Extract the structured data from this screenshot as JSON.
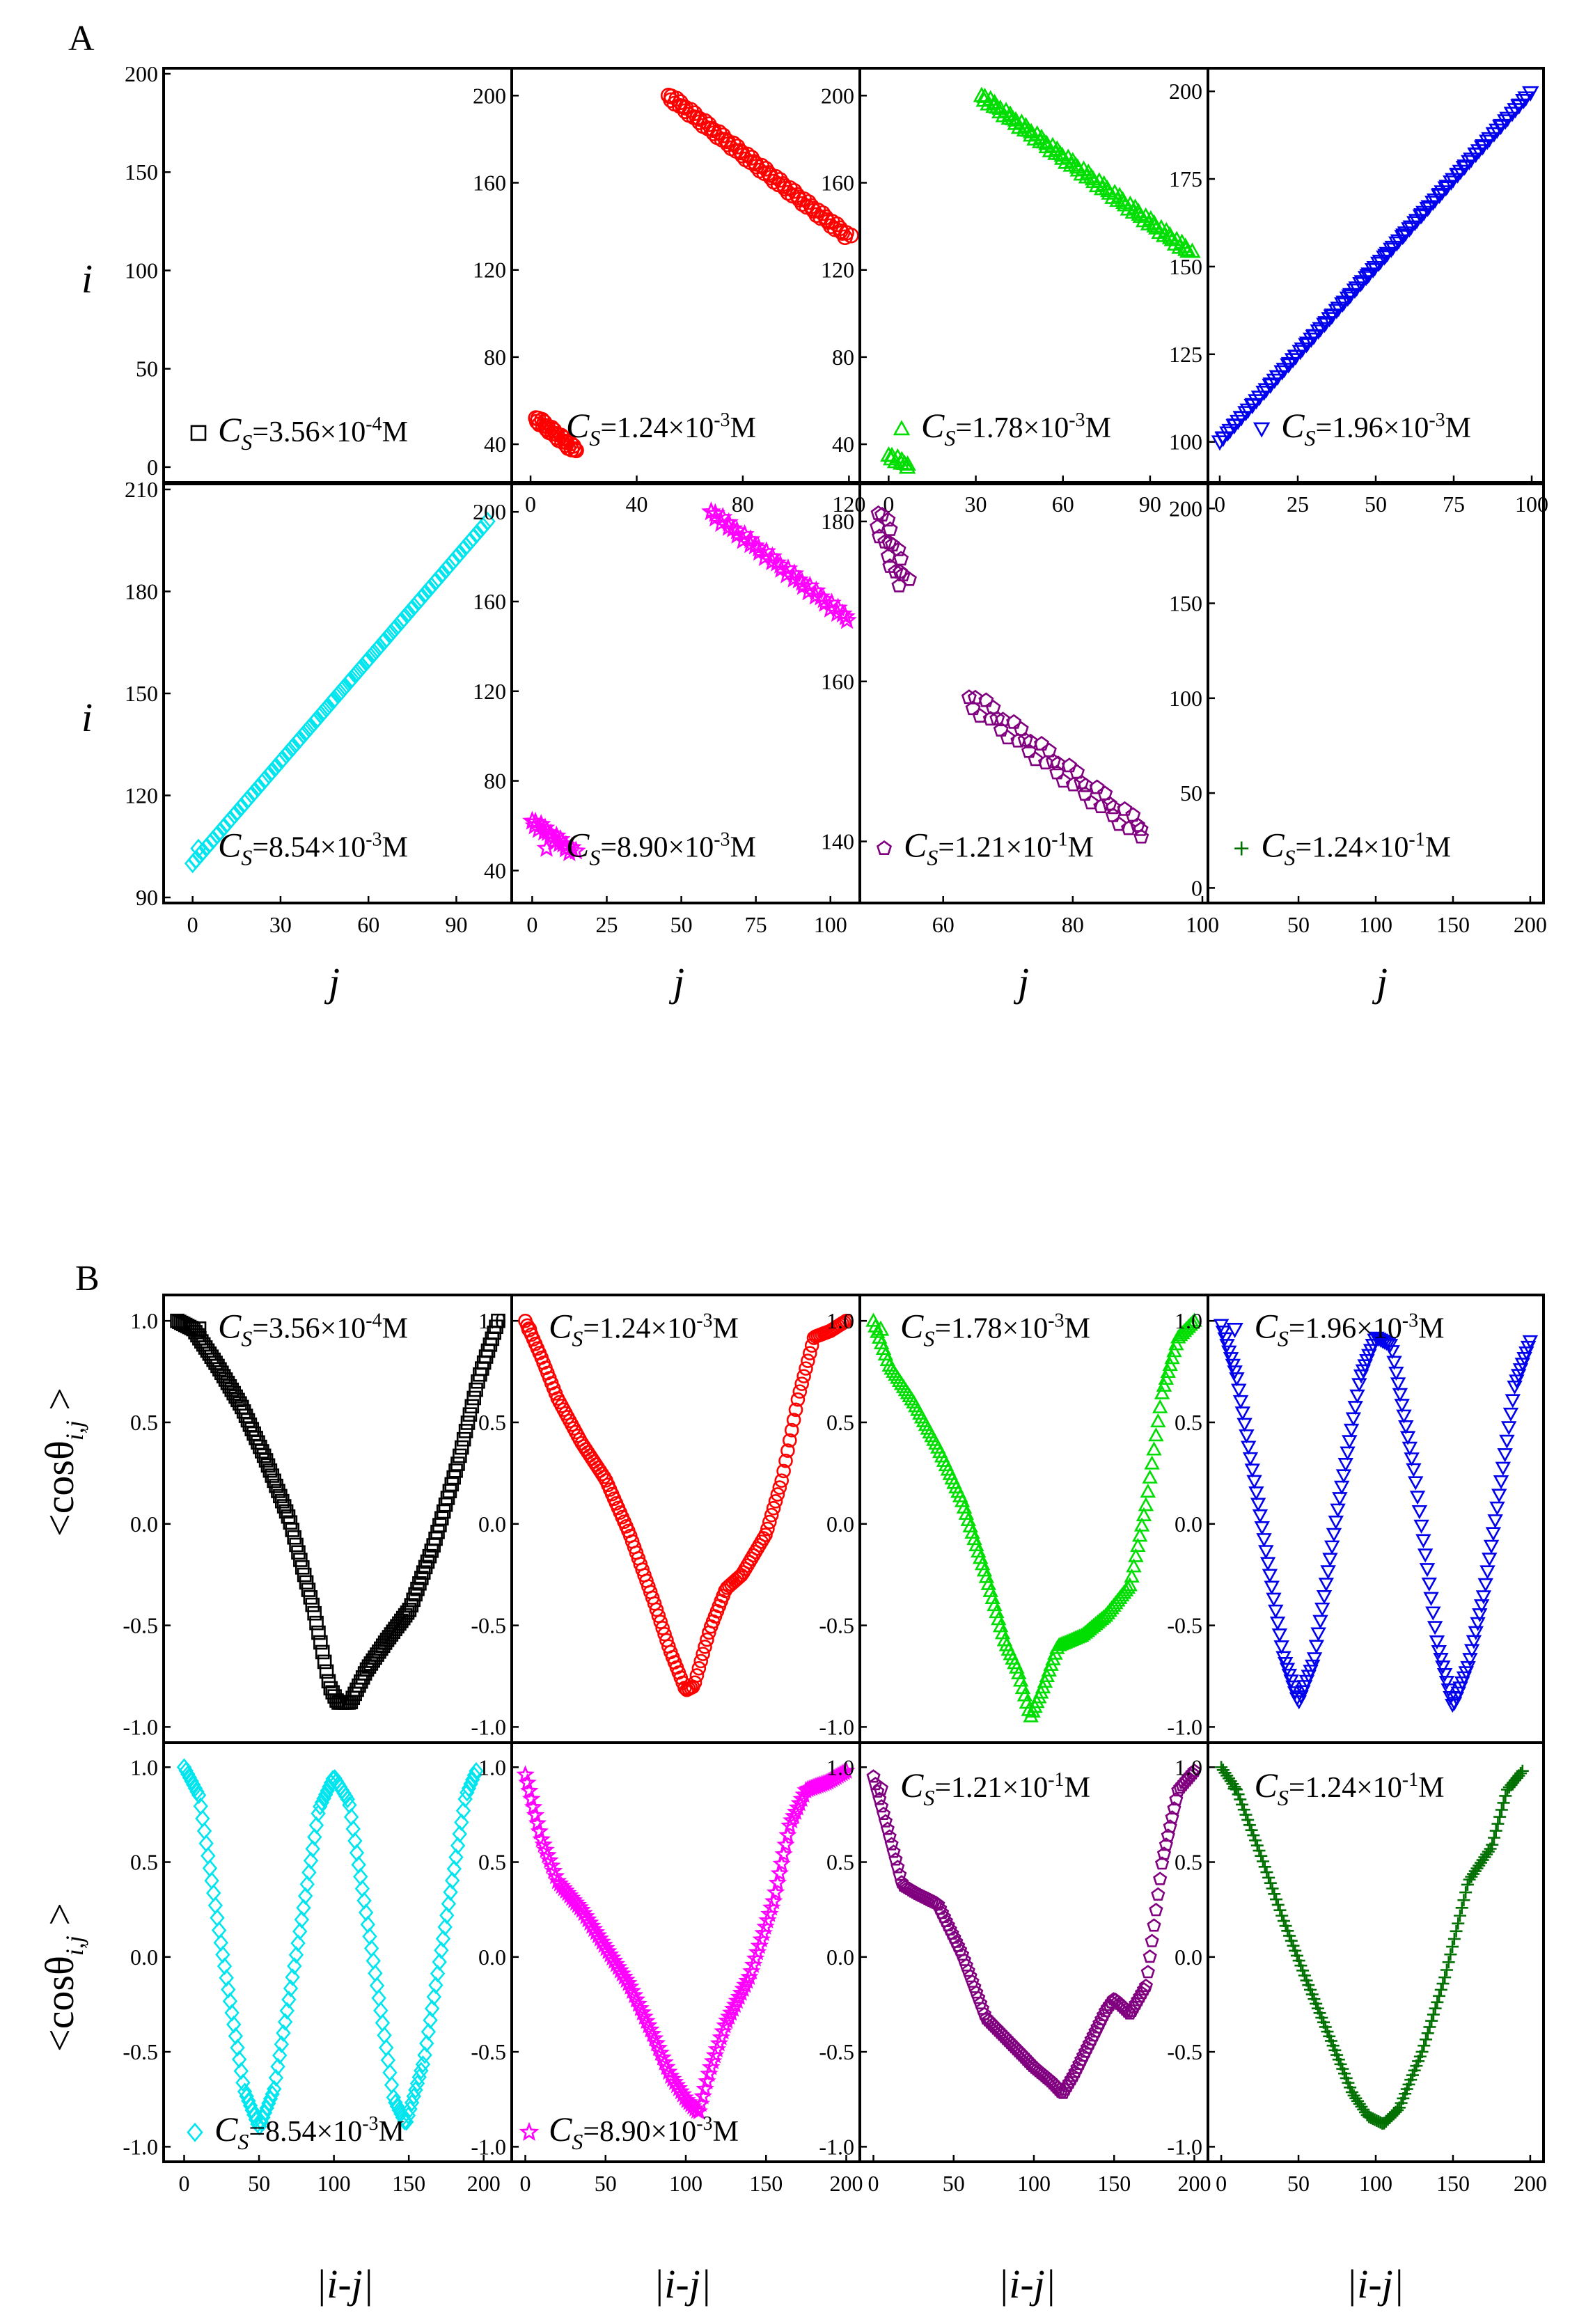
{
  "figure": {
    "panel_A_label": "A",
    "panel_B_label": "B",
    "contact_map_x_label": "j",
    "contact_map_y_label": "i",
    "correlation_x_label": "|i-j|",
    "correlation_y_label": "<cosθ_i,j>"
  },
  "chart_data": [
    {
      "panel": "A",
      "index": 1,
      "type": "scatter",
      "marker": "square",
      "color": "#000000",
      "legend": "C_S=3.56×10^-4 M",
      "legend_parts": {
        "C": "C",
        "sub": "S",
        "val": "=3.56×10",
        "exp": "-4",
        "unit": "M"
      },
      "xlim": [
        0,
        210
      ],
      "ylim": [
        -5,
        200
      ],
      "xticks": [
        50,
        100,
        150,
        200
      ],
      "yticks": [
        0,
        50,
        100,
        150,
        200
      ],
      "show_xticks": false,
      "show_yticks": true,
      "series": []
    },
    {
      "panel": "A",
      "index": 2,
      "type": "scatter",
      "marker": "circle",
      "color": "#ff0000",
      "legend": "C_S=1.24×10^-3 M",
      "legend_parts": {
        "C": "C",
        "sub": "S",
        "val": "=1.24×10",
        "exp": "-3",
        "unit": "M"
      },
      "xlim": [
        -5,
        122
      ],
      "ylim": [
        25,
        210
      ],
      "xticks": [
        0,
        40,
        80,
        120
      ],
      "yticks": [
        40,
        80,
        120,
        160,
        200
      ],
      "show_xticks": true,
      "show_yticks": true,
      "series": [
        {
          "x": [
            52,
            120
          ],
          "y": [
            200,
            135
          ],
          "n": 90
        },
        {
          "x": [
            2,
            17
          ],
          "y": [
            52,
            37
          ],
          "n": 30
        }
      ]
    },
    {
      "panel": "A",
      "index": 3,
      "type": "scatter",
      "marker": "triangle-up",
      "color": "#00dd00",
      "legend": "C_S=1.78×10^-3 M",
      "legend_parts": {
        "C": "C",
        "sub": "S",
        "val": "=1.78×10",
        "exp": "-3",
        "unit": "M"
      },
      "xlim": [
        -8,
        108
      ],
      "ylim": [
        25,
        210
      ],
      "xticks": [
        0,
        30,
        60,
        90
      ],
      "yticks": [
        40,
        80,
        120,
        160,
        200
      ],
      "show_xticks": true,
      "show_yticks": true,
      "series": [
        {
          "x": [
            32,
            104
          ],
          "y": [
            200,
            128
          ],
          "n": 95
        },
        {
          "x": [
            0,
            7
          ],
          "y": [
            35,
            30
          ],
          "n": 10
        }
      ]
    },
    {
      "panel": "A",
      "index": 4,
      "type": "scatter",
      "marker": "triangle-down",
      "color": "#0000ee",
      "legend": "C_S=1.96×10^-3 M",
      "legend_parts": {
        "C": "C",
        "sub": "S",
        "val": "=1.96×10",
        "exp": "-3",
        "unit": "M"
      },
      "xlim": [
        -2,
        102
      ],
      "ylim": [
        90,
        205
      ],
      "xticks": [
        0,
        25,
        50,
        75,
        100
      ],
      "yticks": [
        100,
        125,
        150,
        175,
        200
      ],
      "show_xticks": true,
      "show_yticks": true,
      "series": [
        {
          "x": [
            0,
            99
          ],
          "y": [
            100,
            199
          ],
          "n": 120
        }
      ]
    },
    {
      "panel": "A",
      "index": 5,
      "type": "scatter",
      "marker": "diamond",
      "color": "#00e5ee",
      "legend": "C_S=8.54×10^-3 M",
      "legend_parts": {
        "C": "C",
        "sub": "S",
        "val": "=8.54×10",
        "exp": "-3",
        "unit": "M"
      },
      "xlim": [
        -8,
        107
      ],
      "ylim": [
        90,
        210
      ],
      "xticks": [
        0,
        30,
        60,
        90
      ],
      "yticks": [
        90,
        120,
        150,
        180,
        210
      ],
      "show_xticks": true,
      "show_yticks": true,
      "series": [
        {
          "x": [
            0,
            100
          ],
          "y": [
            100,
            200
          ],
          "n": 120
        }
      ]
    },
    {
      "panel": "A",
      "index": 6,
      "type": "scatter",
      "marker": "star",
      "color": "#ff00ff",
      "legend": "C_S=8.90×10^-3 M",
      "legend_parts": {
        "C": "C",
        "sub": "S",
        "val": "=8.90×10",
        "exp": "-3",
        "unit": "M"
      },
      "xlim": [
        -5,
        108
      ],
      "ylim": [
        28,
        210
      ],
      "xticks": [
        0,
        25,
        50,
        75,
        100
      ],
      "yticks": [
        40,
        80,
        120,
        160,
        200
      ],
      "show_xticks": true,
      "show_yticks": true,
      "series": [
        {
          "x": [
            60,
            106
          ],
          "y": [
            200,
            152
          ],
          "n": 45
        },
        {
          "x": [
            0,
            14
          ],
          "y": [
            62,
            48
          ],
          "n": 20
        }
      ]
    },
    {
      "panel": "A",
      "index": 7,
      "type": "scatter",
      "marker": "pentagon",
      "color": "#800080",
      "legend": "C_S=1.21×10^-1 M",
      "legend_parts": {
        "C": "C",
        "sub": "S",
        "val": "=1.21×10",
        "exp": "-1",
        "unit": "M"
      },
      "xlim": [
        48,
        100
      ],
      "ylim": [
        133,
        184
      ],
      "xticks": [
        60,
        80,
        100
      ],
      "yticks": [
        140,
        160,
        180
      ],
      "show_xticks": true,
      "show_yticks": true,
      "series": [
        {
          "x": [
            50,
            54
          ],
          "y": [
            181,
            172
          ],
          "n": 18
        },
        {
          "x": [
            64,
            91
          ],
          "y": [
            158,
            141
          ],
          "n": 45
        }
      ]
    },
    {
      "panel": "A",
      "index": 8,
      "type": "scatter",
      "marker": "plus",
      "color": "#007000",
      "legend": "C_S=1.24×10^-1 M",
      "legend_parts": {
        "C": "C",
        "sub": "S",
        "val": "=1.24×10",
        "exp": "-1",
        "unit": "M"
      },
      "xlim": [
        -5,
        205
      ],
      "ylim": [
        -5,
        210
      ],
      "xticks": [
        50,
        100,
        150,
        200
      ],
      "yticks": [
        0,
        50,
        100,
        150,
        200
      ],
      "show_xticks": true,
      "show_yticks": true,
      "series": []
    },
    {
      "panel": "B",
      "index": 1,
      "type": "scatter",
      "marker": "square",
      "color": "#000000",
      "legend": "C_S=3.56×10^-4 M",
      "legend_parts": {
        "C": "C",
        "sub": "S",
        "val": "=3.56×10",
        "exp": "-4",
        "unit": "M"
      },
      "xlim": [
        -5,
        205
      ],
      "ylim": [
        -1.05,
        1.1
      ],
      "xticks": [
        0,
        50,
        100,
        150,
        200
      ],
      "yticks": [
        -1.0,
        -0.5,
        0.0,
        0.5,
        1.0
      ],
      "show_xticks": false,
      "show_yticks": true,
      "curve": [
        [
          0,
          1.0
        ],
        [
          10,
          0.96
        ],
        [
          25,
          0.78
        ],
        [
          40,
          0.58
        ],
        [
          55,
          0.32
        ],
        [
          70,
          0.02
        ],
        [
          85,
          -0.42
        ],
        [
          95,
          -0.8
        ],
        [
          100,
          -0.88
        ],
        [
          108,
          -0.88
        ],
        [
          118,
          -0.72
        ],
        [
          130,
          -0.58
        ],
        [
          145,
          -0.42
        ],
        [
          160,
          -0.1
        ],
        [
          175,
          0.3
        ],
        [
          188,
          0.72
        ],
        [
          200,
          1.0
        ]
      ],
      "n": 160
    },
    {
      "panel": "B",
      "index": 2,
      "type": "scatter",
      "marker": "circle",
      "color": "#ff0000",
      "legend": "C_S=1.24×10^-3 M",
      "legend_parts": {
        "C": "C",
        "sub": "S",
        "val": "=1.24×10",
        "exp": "-3",
        "unit": "M"
      },
      "xlim": [
        -5,
        205
      ],
      "ylim": [
        -1.05,
        1.1
      ],
      "xticks": [
        0,
        50,
        100,
        150,
        200
      ],
      "yticks": [
        -1.0,
        -0.5,
        0.0,
        0.5,
        1.0
      ],
      "show_xticks": false,
      "show_yticks": true,
      "curve": [
        [
          0,
          1.0
        ],
        [
          10,
          0.82
        ],
        [
          20,
          0.62
        ],
        [
          35,
          0.4
        ],
        [
          50,
          0.22
        ],
        [
          65,
          -0.05
        ],
        [
          80,
          -0.38
        ],
        [
          90,
          -0.62
        ],
        [
          100,
          -0.82
        ],
        [
          105,
          -0.8
        ],
        [
          115,
          -0.52
        ],
        [
          125,
          -0.32
        ],
        [
          135,
          -0.25
        ],
        [
          150,
          -0.05
        ],
        [
          160,
          0.22
        ],
        [
          170,
          0.62
        ],
        [
          180,
          0.92
        ],
        [
          190,
          0.95
        ],
        [
          200,
          1.0
        ]
      ],
      "n": 160
    },
    {
      "panel": "B",
      "index": 3,
      "type": "scatter",
      "marker": "triangle-up",
      "color": "#00dd00",
      "legend": "C_S=1.78×10^-3 M",
      "legend_parts": {
        "C": "C",
        "sub": "S",
        "val": "=1.78×10",
        "exp": "-3",
        "unit": "M"
      },
      "xlim": [
        -5,
        205
      ],
      "ylim": [
        -1.05,
        1.1
      ],
      "xticks": [
        0,
        50,
        100,
        150,
        200
      ],
      "yticks": [
        -1.0,
        -0.5,
        0.0,
        0.5,
        1.0
      ],
      "show_xticks": false,
      "show_yticks": true,
      "curve": [
        [
          0,
          1.0
        ],
        [
          10,
          0.78
        ],
        [
          25,
          0.6
        ],
        [
          40,
          0.38
        ],
        [
          55,
          0.12
        ],
        [
          70,
          -0.25
        ],
        [
          82,
          -0.58
        ],
        [
          90,
          -0.72
        ],
        [
          98,
          -0.95
        ],
        [
          105,
          -0.82
        ],
        [
          115,
          -0.6
        ],
        [
          130,
          -0.55
        ],
        [
          145,
          -0.45
        ],
        [
          160,
          -0.3
        ],
        [
          170,
          0.1
        ],
        [
          180,
          0.65
        ],
        [
          190,
          0.92
        ],
        [
          200,
          1.0
        ]
      ],
      "n": 160
    },
    {
      "panel": "B",
      "index": 4,
      "type": "scatter",
      "marker": "triangle-down",
      "color": "#0000ee",
      "legend": "C_S=1.96×10^-3 M",
      "legend_parts": {
        "C": "C",
        "sub": "S",
        "val": "=1.96×10",
        "exp": "-3",
        "unit": "M"
      },
      "xlim": [
        -5,
        205
      ],
      "ylim": [
        -1.05,
        1.1
      ],
      "xticks": [
        0,
        50,
        100,
        150,
        200
      ],
      "yticks": [
        -1.0,
        -0.5,
        0.0,
        0.5,
        1.0
      ],
      "show_xticks": false,
      "show_yticks": true,
      "curve": [
        [
          0,
          0.98
        ],
        [
          10,
          0.72
        ],
        [
          25,
          0.05
        ],
        [
          40,
          -0.65
        ],
        [
          50,
          -0.88
        ],
        [
          60,
          -0.68
        ],
        [
          75,
          0.05
        ],
        [
          90,
          0.72
        ],
        [
          100,
          0.92
        ],
        [
          110,
          0.88
        ],
        [
          125,
          0.25
        ],
        [
          140,
          -0.6
        ],
        [
          150,
          -0.9
        ],
        [
          160,
          -0.7
        ],
        [
          170,
          -0.35
        ],
        [
          180,
          0.15
        ],
        [
          190,
          0.68
        ],
        [
          200,
          0.9
        ]
      ],
      "n": 160
    },
    {
      "panel": "B",
      "index": 5,
      "type": "scatter",
      "marker": "diamond",
      "color": "#00e5ee",
      "legend": "C_S=8.54×10^-3 M",
      "legend_parts": {
        "C": "C",
        "sub": "S",
        "val": "=8.54×10",
        "exp": "-3",
        "unit": "M"
      },
      "xlim": [
        -10,
        215
      ],
      "ylim": [
        -1.05,
        1.1
      ],
      "xticks": [
        0,
        50,
        100,
        150,
        200
      ],
      "yticks": [
        -1.0,
        -0.5,
        0.0,
        0.5,
        1.0
      ],
      "show_xticks": true,
      "show_yticks": true,
      "curve": [
        [
          0,
          1.0
        ],
        [
          10,
          0.85
        ],
        [
          25,
          0.05
        ],
        [
          40,
          -0.7
        ],
        [
          50,
          -0.9
        ],
        [
          60,
          -0.7
        ],
        [
          75,
          0.02
        ],
        [
          90,
          0.78
        ],
        [
          100,
          0.95
        ],
        [
          110,
          0.82
        ],
        [
          125,
          0.05
        ],
        [
          140,
          -0.75
        ],
        [
          148,
          -0.88
        ],
        [
          160,
          -0.55
        ],
        [
          175,
          0.2
        ],
        [
          188,
          0.85
        ],
        [
          195,
          0.98
        ]
      ],
      "n": 160
    },
    {
      "panel": "B",
      "index": 6,
      "type": "scatter",
      "marker": "star",
      "color": "#ff00ff",
      "legend": "C_S=8.90×10^-3 M",
      "legend_parts": {
        "C": "C",
        "sub": "S",
        "val": "=8.90×10",
        "exp": "-3",
        "unit": "M"
      },
      "xlim": [
        -5,
        205
      ],
      "ylim": [
        -1.05,
        1.1
      ],
      "xticks": [
        0,
        50,
        100,
        150,
        200
      ],
      "yticks": [
        -1.0,
        -0.5,
        0.0,
        0.5,
        1.0
      ],
      "show_xticks": true,
      "show_yticks": true,
      "curve": [
        [
          0,
          0.96
        ],
        [
          10,
          0.62
        ],
        [
          20,
          0.4
        ],
        [
          35,
          0.25
        ],
        [
          50,
          0.05
        ],
        [
          65,
          -0.15
        ],
        [
          80,
          -0.42
        ],
        [
          90,
          -0.62
        ],
        [
          100,
          -0.75
        ],
        [
          108,
          -0.82
        ],
        [
          115,
          -0.6
        ],
        [
          125,
          -0.35
        ],
        [
          140,
          -0.1
        ],
        [
          155,
          0.3
        ],
        [
          165,
          0.7
        ],
        [
          175,
          0.88
        ],
        [
          188,
          0.92
        ],
        [
          200,
          0.98
        ]
      ],
      "n": 160
    },
    {
      "panel": "B",
      "index": 7,
      "type": "scatter",
      "marker": "pentagon",
      "color": "#800080",
      "legend": "C_S=1.21×10^-1 M",
      "legend_parts": {
        "C": "C",
        "sub": "S",
        "val": "=1.21×10",
        "exp": "-1",
        "unit": "M"
      },
      "xlim": [
        -5,
        205
      ],
      "ylim": [
        -1.05,
        1.1
      ],
      "xticks": [
        0,
        50,
        100,
        150,
        200
      ],
      "yticks": [
        -1.0,
        -0.5,
        0.0,
        0.5,
        1.0
      ],
      "show_xticks": true,
      "show_yticks": true,
      "curve": [
        [
          0,
          0.95
        ],
        [
          8,
          0.7
        ],
        [
          18,
          0.38
        ],
        [
          28,
          0.33
        ],
        [
          40,
          0.28
        ],
        [
          55,
          0.02
        ],
        [
          70,
          -0.32
        ],
        [
          85,
          -0.45
        ],
        [
          100,
          -0.58
        ],
        [
          110,
          -0.65
        ],
        [
          118,
          -0.72
        ],
        [
          125,
          -0.62
        ],
        [
          135,
          -0.45
        ],
        [
          145,
          -0.28
        ],
        [
          150,
          -0.22
        ],
        [
          160,
          -0.3
        ],
        [
          170,
          -0.15
        ],
        [
          180,
          0.5
        ],
        [
          190,
          0.88
        ],
        [
          200,
          0.98
        ]
      ],
      "n": 160
    },
    {
      "panel": "B",
      "index": 8,
      "type": "scatter",
      "marker": "plus",
      "color": "#007000",
      "legend": "C_S=1.24×10^-1 M",
      "legend_parts": {
        "C": "C",
        "sub": "S",
        "val": "=1.24×10",
        "exp": "-1",
        "unit": "M"
      },
      "xlim": [
        -5,
        205
      ],
      "ylim": [
        -1.05,
        1.1
      ],
      "xticks": [
        0,
        50,
        100,
        150,
        200
      ],
      "yticks": [
        -1.0,
        -0.5,
        0.0,
        0.5,
        1.0
      ],
      "show_xticks": true,
      "show_yticks": true,
      "curve": [
        [
          0,
          1.0
        ],
        [
          10,
          0.88
        ],
        [
          25,
          0.55
        ],
        [
          40,
          0.2
        ],
        [
          55,
          -0.12
        ],
        [
          70,
          -0.42
        ],
        [
          85,
          -0.72
        ],
        [
          95,
          -0.84
        ],
        [
          105,
          -0.88
        ],
        [
          115,
          -0.8
        ],
        [
          130,
          -0.5
        ],
        [
          145,
          -0.1
        ],
        [
          160,
          0.4
        ],
        [
          175,
          0.58
        ],
        [
          185,
          0.88
        ],
        [
          195,
          0.98
        ]
      ],
      "n": 160
    }
  ]
}
